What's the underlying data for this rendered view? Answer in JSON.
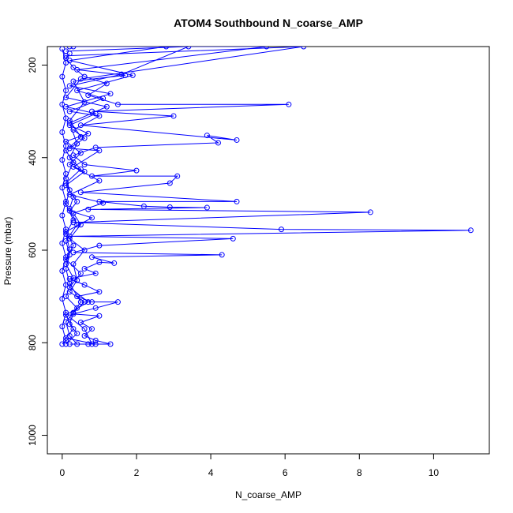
{
  "colors": {
    "series": "#0000ff",
    "axis": "#000000",
    "background": "#ffffff"
  },
  "chart_data": {
    "type": "line",
    "title": "ATOM4 Southbound N_coarse_AMP",
    "xlabel": "N_coarse_AMP",
    "ylabel": "Pressure (mbar)",
    "xlim": [
      -0.4,
      11.5
    ],
    "ylim": [
      1040,
      160
    ],
    "y_reversed": true,
    "grid": false,
    "legend": "none",
    "markers": "open-circle",
    "x_ticks": [
      0,
      2,
      4,
      6,
      8,
      10
    ],
    "x_tick_labels": [
      "0",
      "2",
      "4",
      "6",
      "8",
      "10"
    ],
    "y_ticks": [
      200,
      400,
      600,
      800,
      1000
    ],
    "y_tick_labels": [
      "200",
      "400",
      "600",
      "800",
      "1000"
    ],
    "series": [
      {
        "values": [
          [
            0.2,
            175
          ],
          [
            0.1,
            185
          ],
          [
            0.3,
            205
          ],
          [
            0.6,
            225
          ],
          [
            1.2,
            240
          ],
          [
            0.7,
            265
          ],
          [
            1.5,
            285
          ],
          [
            6.1,
            285
          ],
          [
            0.8,
            300
          ],
          [
            3.0,
            310
          ],
          [
            0.5,
            330
          ],
          [
            4.7,
            362
          ],
          [
            3.9,
            352
          ],
          [
            4.2,
            368
          ],
          [
            0.9,
            378
          ],
          [
            0.3,
            395
          ],
          [
            0.6,
            415
          ],
          [
            2.0,
            428
          ],
          [
            0.8,
            440
          ],
          [
            3.1,
            440
          ],
          [
            2.9,
            455
          ],
          [
            0.5,
            475
          ],
          [
            4.7,
            495
          ],
          [
            1.0,
            495
          ],
          [
            2.2,
            505
          ],
          [
            2.9,
            507
          ],
          [
            3.9,
            508
          ],
          [
            0.7,
            512
          ],
          [
            8.3,
            518
          ],
          [
            0.3,
            540
          ],
          [
            5.9,
            555
          ],
          [
            11.0,
            557
          ],
          [
            0.2,
            570
          ],
          [
            4.6,
            575
          ],
          [
            1.0,
            590
          ],
          [
            0.3,
            605
          ],
          [
            4.3,
            610
          ],
          [
            0.8,
            615
          ],
          [
            1.4,
            628
          ],
          [
            1.0,
            626
          ],
          [
            0.6,
            640
          ],
          [
            0.9,
            650
          ],
          [
            0.2,
            662
          ],
          [
            0.6,
            675
          ],
          [
            1.0,
            690
          ],
          [
            0.4,
            700
          ],
          [
            0.8,
            712
          ],
          [
            1.5,
            712
          ],
          [
            0.9,
            725
          ],
          [
            0.3,
            738
          ],
          [
            1.0,
            742
          ],
          [
            0.5,
            756
          ],
          [
            0.8,
            770
          ],
          [
            0.6,
            785
          ],
          [
            0.9,
            795
          ],
          [
            1.3,
            803
          ],
          [
            0.7,
            803
          ],
          [
            0.2,
            803
          ]
        ]
      },
      {
        "values": [
          [
            0.0,
            165
          ],
          [
            0.1,
            195
          ],
          [
            0.0,
            225
          ],
          [
            0.1,
            255
          ],
          [
            0.0,
            285
          ],
          [
            0.1,
            315
          ],
          [
            0.0,
            345
          ],
          [
            0.1,
            375
          ],
          [
            0.0,
            405
          ],
          [
            0.1,
            435
          ],
          [
            0.0,
            465
          ],
          [
            0.1,
            495
          ],
          [
            0.0,
            525
          ],
          [
            0.1,
            555
          ],
          [
            0.0,
            585
          ],
          [
            0.1,
            615
          ],
          [
            0.0,
            645
          ],
          [
            0.1,
            675
          ],
          [
            0.0,
            705
          ],
          [
            0.1,
            735
          ],
          [
            0.0,
            765
          ],
          [
            0.1,
            795
          ],
          [
            0.0,
            803
          ]
        ]
      },
      {
        "values": [
          [
            0.3,
            160
          ],
          [
            2.8,
            160
          ],
          [
            0.2,
            190
          ],
          [
            1.9,
            222
          ],
          [
            0.4,
            255
          ],
          [
            1.1,
            272
          ],
          [
            0.2,
            300
          ],
          [
            1.0,
            310
          ],
          [
            0.3,
            340
          ],
          [
            0.6,
            358
          ],
          [
            0.2,
            380
          ],
          [
            1.0,
            385
          ],
          [
            0.3,
            420
          ],
          [
            1.0,
            450
          ],
          [
            0.2,
            480
          ],
          [
            1.1,
            498
          ],
          [
            0.3,
            520
          ],
          [
            0.5,
            545
          ],
          [
            0.2,
            575
          ],
          [
            0.6,
            600
          ],
          [
            0.3,
            630
          ],
          [
            0.4,
            665
          ],
          [
            0.2,
            690
          ],
          [
            0.6,
            712
          ],
          [
            0.3,
            735
          ],
          [
            0.2,
            760
          ],
          [
            0.4,
            780
          ],
          [
            0.1,
            803
          ]
        ]
      },
      {
        "values": [
          [
            0.1,
            170
          ],
          [
            3.4,
            160
          ],
          [
            1.6,
            220
          ],
          [
            0.2,
            245
          ],
          [
            1.3,
            262
          ],
          [
            0.1,
            290
          ],
          [
            0.9,
            305
          ],
          [
            0.2,
            330
          ],
          [
            0.7,
            348
          ],
          [
            0.1,
            365
          ],
          [
            0.5,
            390
          ],
          [
            0.2,
            415
          ],
          [
            0.6,
            430
          ],
          [
            0.1,
            460
          ],
          [
            0.4,
            495
          ],
          [
            0.2,
            515
          ],
          [
            0.8,
            530
          ],
          [
            0.1,
            560
          ],
          [
            0.3,
            590
          ],
          [
            0.1,
            620
          ],
          [
            0.5,
            650
          ],
          [
            0.2,
            680
          ],
          [
            0.7,
            712
          ],
          [
            0.1,
            740
          ],
          [
            0.3,
            770
          ],
          [
            0.1,
            790
          ],
          [
            0.9,
            803
          ]
        ]
      },
      {
        "values": [
          [
            0.2,
            160
          ],
          [
            5.5,
            160
          ],
          [
            0.4,
            210
          ],
          [
            1.7,
            222
          ],
          [
            0.3,
            235
          ],
          [
            0.6,
            280
          ],
          [
            0.2,
            320
          ],
          [
            0.5,
            355
          ],
          [
            0.1,
            385
          ],
          [
            0.3,
            410
          ],
          [
            0.1,
            445
          ],
          [
            0.2,
            470
          ],
          [
            0.1,
            500
          ],
          [
            0.3,
            535
          ],
          [
            0.1,
            565
          ],
          [
            0.2,
            598
          ],
          [
            0.1,
            630
          ],
          [
            0.3,
            660
          ],
          [
            0.1,
            700
          ],
          [
            0.4,
            725
          ],
          [
            0.1,
            755
          ],
          [
            0.2,
            785
          ],
          [
            0.4,
            803
          ]
        ]
      },
      {
        "values": [
          [
            0.1,
            180
          ],
          [
            6.5,
            160
          ],
          [
            0.5,
            230
          ],
          [
            0.1,
            270
          ],
          [
            1.2,
            290
          ],
          [
            0.2,
            325
          ],
          [
            0.4,
            370
          ],
          [
            0.2,
            400
          ],
          [
            0.5,
            425
          ],
          [
            0.1,
            455
          ],
          [
            0.3,
            485
          ],
          [
            0.2,
            510
          ],
          [
            0.4,
            545
          ],
          [
            0.1,
            580
          ],
          [
            0.2,
            610
          ],
          [
            0.1,
            640
          ],
          [
            0.2,
            672
          ],
          [
            0.5,
            712
          ],
          [
            0.2,
            745
          ],
          [
            0.6,
            770
          ],
          [
            0.8,
            803
          ]
        ]
      }
    ]
  }
}
